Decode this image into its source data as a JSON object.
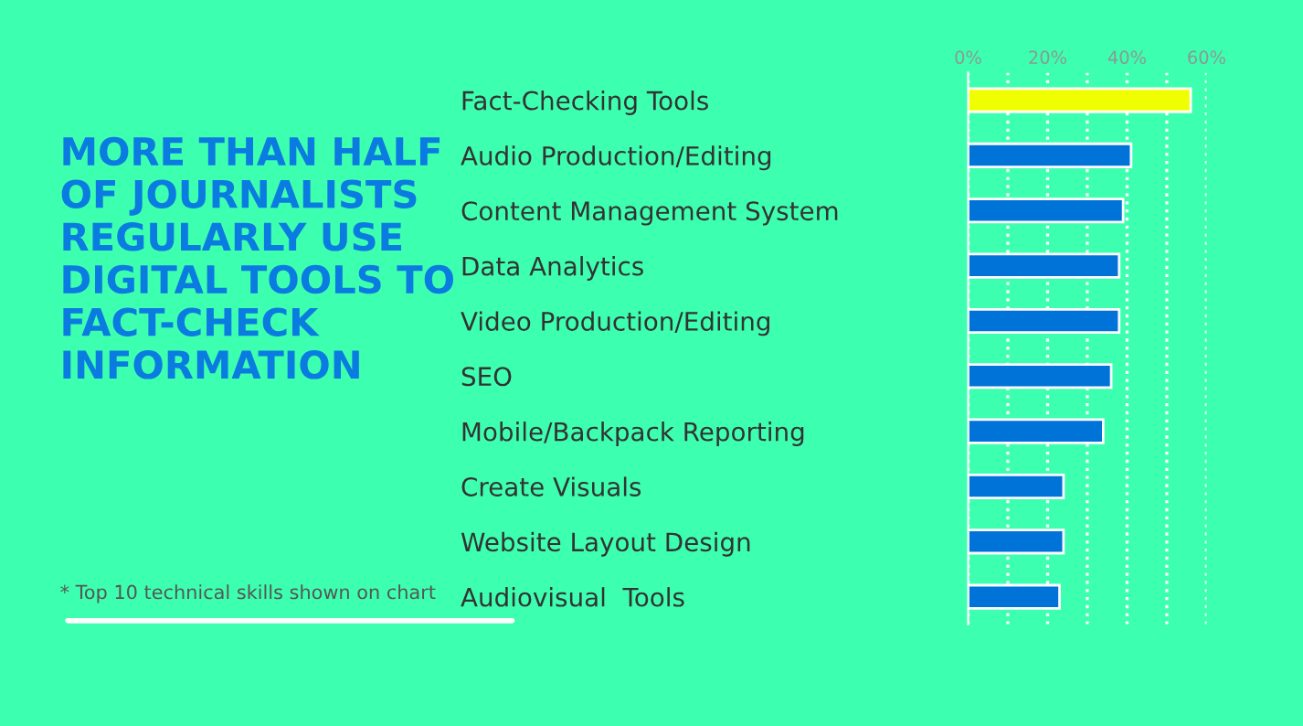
{
  "chart_data": {
    "type": "bar",
    "orientation": "horizontal",
    "title": "MORE THAN HALF\nOF JOURNALISTS\nREGULARLY USE\nDIGITAL TOOLS TO\nFACT-CHECK\nINFORMATION",
    "annotations": [
      "* Top 10 technical skills shown on chart"
    ],
    "categories": [
      "Fact-Checking Tools",
      "Audio Production/Editing",
      "Content Management System",
      "Data Analytics",
      "Video Production/Editing",
      "SEO",
      "Mobile/Backpack Reporting",
      "Create Visuals",
      "Website Layout Design",
      "Audiovisual  Tools"
    ],
    "values": [
      56,
      41,
      39,
      38,
      38,
      36,
      34,
      24,
      24,
      23
    ],
    "colors": [
      "#f0ff00",
      "#0073d9",
      "#0073d9",
      "#0073d9",
      "#0073d9",
      "#0073d9",
      "#0073d9",
      "#0073d9",
      "#0073d9",
      "#0073d9"
    ],
    "xlim": [
      0,
      60
    ],
    "xticks": [
      {
        "value": 0,
        "label": "0%"
      },
      {
        "value": 10,
        "label": null
      },
      {
        "value": 20,
        "label": "20%"
      },
      {
        "value": 30,
        "label": null
      },
      {
        "value": 40,
        "label": "40%"
      },
      {
        "value": 50,
        "label": null
      },
      {
        "value": 60,
        "label": "60%"
      }
    ],
    "grid": "x"
  }
}
